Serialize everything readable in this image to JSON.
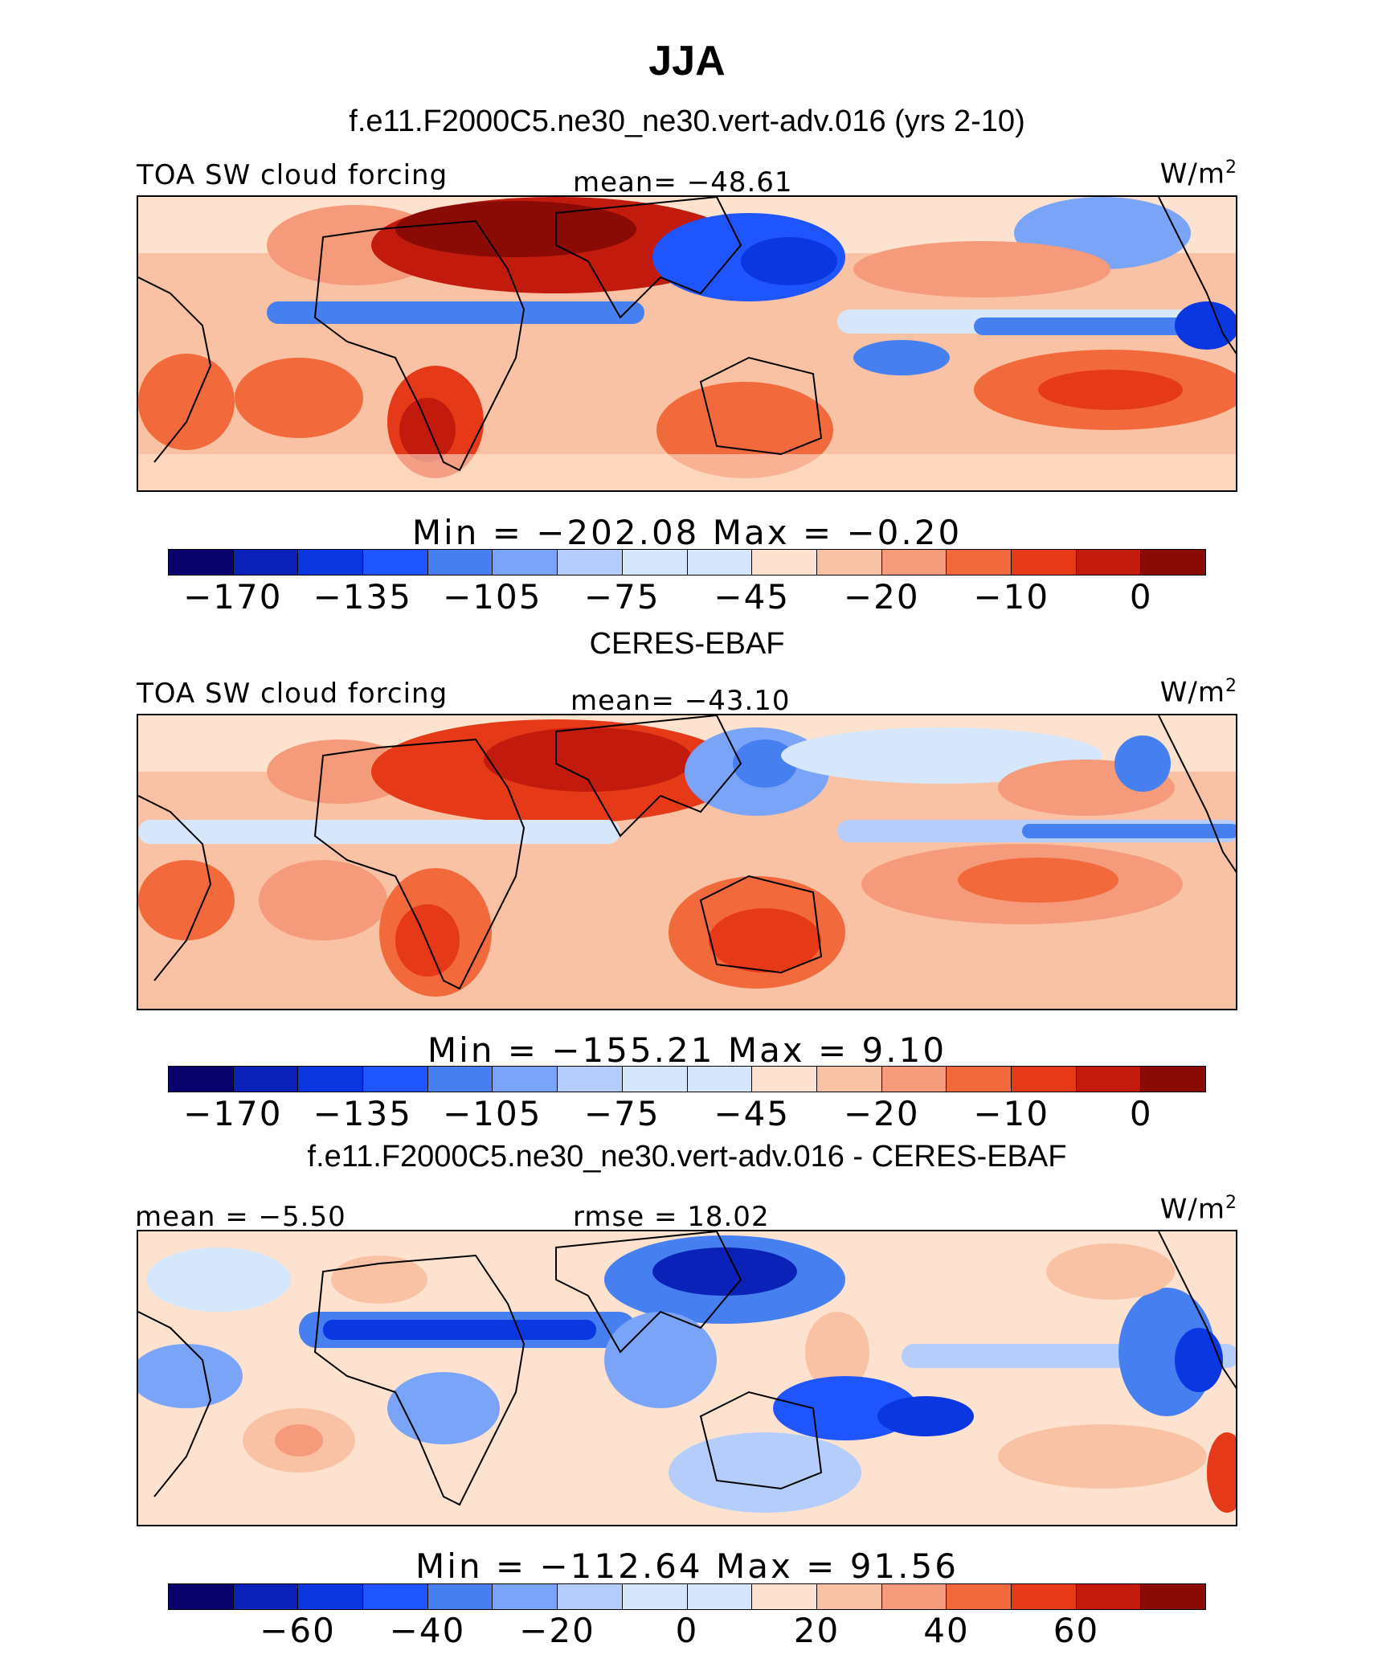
{
  "title": "JJA",
  "panels": [
    {
      "subtitle": "f.e11.F2000C5.ne30_ne30.vert-adv.016 (yrs 2-10)",
      "left_label": "TOA SW cloud forcing",
      "center_label": "mean= −48.61",
      "units_base": "W/m",
      "units_exp": "2",
      "minmax": "Min  =  −202.08  Max  =   −0.20",
      "tick_labels": [
        "−170",
        "−135",
        "−105",
        "−75",
        "−45",
        "−20",
        "−10",
        "0"
      ],
      "map_style": "model"
    },
    {
      "subtitle": "CERES-EBAF",
      "left_label": "TOA SW cloud forcing",
      "center_label": "mean= −43.10",
      "units_base": "W/m",
      "units_exp": "2",
      "minmax": "Min  =  −155.21  Max  =    9.10",
      "tick_labels": [
        "−170",
        "−135",
        "−105",
        "−75",
        "−45",
        "−20",
        "−10",
        "0"
      ],
      "map_style": "obs"
    },
    {
      "subtitle": "f.e11.F2000C5.ne30_ne30.vert-adv.016 - CERES-EBAF",
      "left_label": "mean =   −5.50",
      "center_label": "rmse =   18.02",
      "units_base": "W/m",
      "units_exp": "2",
      "minmax": "Min  =  −112.64  Max  =   91.56",
      "tick_labels": [
        "−60",
        "−40",
        "−20",
        "0",
        "20",
        "40",
        "60"
      ],
      "map_style": "diff"
    }
  ],
  "colormap": [
    "#08006b",
    "#0a22b8",
    "#0a37e0",
    "#1f55ff",
    "#4680f0",
    "#7aa4f7",
    "#b4cdfb",
    "#d6e6fb",
    "#fde3cf",
    "#f9c2a4",
    "#f59a7a",
    "#f26a3c",
    "#e53918",
    "#c21a0c",
    "#8a0a05"
  ]
}
